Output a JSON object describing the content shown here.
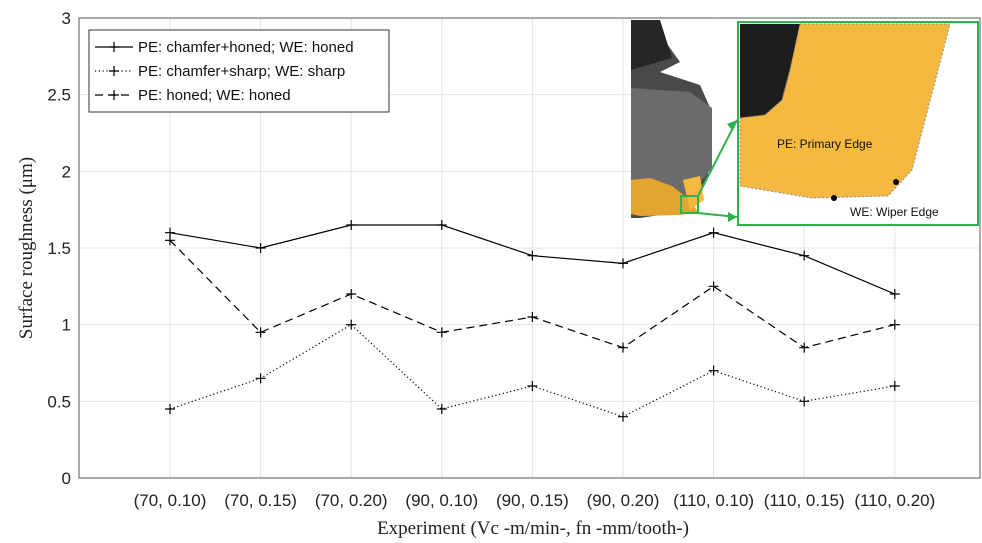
{
  "chart_data": {
    "type": "line",
    "xlabel": "Experiment (Vc -m/min-, fn -mm/tooth-)",
    "ylabel": "Surface roughness (μm)",
    "ylim": [
      0,
      3
    ],
    "yticks": [
      "0",
      "0.5",
      "1",
      "1.5",
      "2",
      "2.5",
      "3"
    ],
    "grid": true,
    "legend_position": "top-left",
    "categories": [
      "(70, 0.10)",
      "(70, 0.15)",
      "(70, 0.20)",
      "(90, 0.10)",
      "(90, 0.15)",
      "(90, 0.20)",
      "(110, 0.10)",
      "(110, 0.15)",
      "(110, 0.20)"
    ],
    "series": [
      {
        "name": "PE: chamfer+honed; WE: honed",
        "style": "solid",
        "values": [
          1.6,
          1.5,
          1.65,
          1.65,
          1.45,
          1.4,
          1.6,
          1.45,
          1.2
        ]
      },
      {
        "name": "PE: chamfer+sharp; WE: sharp",
        "style": "dotted",
        "values": [
          0.45,
          0.65,
          1.0,
          0.45,
          0.6,
          0.4,
          0.7,
          0.5,
          0.6
        ]
      },
      {
        "name": "PE: honed; WE: honed",
        "style": "dashed",
        "values": [
          1.55,
          0.95,
          1.2,
          0.95,
          1.05,
          0.85,
          1.25,
          0.85,
          1.0
        ]
      }
    ]
  },
  "inset": {
    "primary_edge_label": "PE: Primary Edge",
    "wiper_edge_label": "WE: Wiper Edge",
    "highlight_color": "#2db34a",
    "insert_color": "#f5b942"
  }
}
